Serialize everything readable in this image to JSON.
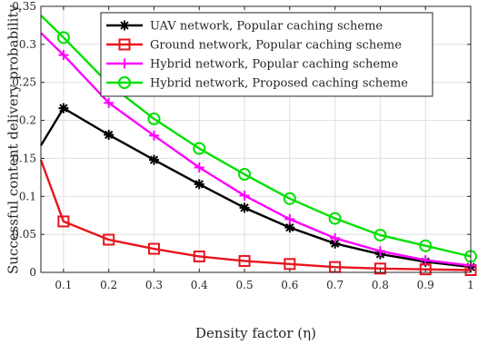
{
  "chart_data": {
    "type": "line",
    "title": "",
    "xlabel": "Density factor (η)",
    "ylabel": "Successful content delivery probability",
    "xlim": [
      0.05,
      1.0
    ],
    "ylim": [
      0,
      0.35
    ],
    "xticks": [
      0.1,
      0.2,
      0.3,
      0.4,
      0.5,
      0.6,
      0.7,
      0.8,
      0.9,
      1
    ],
    "xtick_labels": [
      "0.1",
      "0.2",
      "0.3",
      "0.4",
      "0.5",
      "0.6",
      "0.7",
      "0.8",
      "0.9",
      "1"
    ],
    "yticks": [
      0,
      0.05,
      0.1,
      0.15,
      0.2,
      0.25,
      0.3,
      0.35
    ],
    "ytick_labels": [
      "0",
      "0.05",
      "0.1",
      "0.15",
      "0.2",
      "0.25",
      "0.3",
      "0.35"
    ],
    "grid": true,
    "legend_position": "top-right",
    "x": [
      0.05,
      0.1,
      0.2,
      0.3,
      0.4,
      0.5,
      0.6,
      0.7,
      0.8,
      0.9,
      1.0
    ],
    "series": [
      {
        "name": "UAV network, Popular caching scheme",
        "color": "#000000",
        "marker": "asterisk",
        "values": [
          0.167,
          0.216,
          0.181,
          0.148,
          0.116,
          0.085,
          0.059,
          0.038,
          0.024,
          0.014,
          0.007
        ]
      },
      {
        "name": "Ground network, Popular caching scheme",
        "color": "#e8141c",
        "marker": "square",
        "values": [
          0.148,
          0.067,
          0.043,
          0.031,
          0.021,
          0.015,
          0.011,
          0.007,
          0.005,
          0.004,
          0.003
        ]
      },
      {
        "name": "Hybrid network, Popular caching scheme",
        "color": "#ff00ff",
        "marker": "plus",
        "values": [
          0.315,
          0.286,
          0.223,
          0.18,
          0.138,
          0.101,
          0.07,
          0.045,
          0.028,
          0.016,
          0.009
        ]
      },
      {
        "name": "Hybrid network, Proposed caching scheme",
        "color": "#00e000",
        "marker": "circle",
        "values": [
          0.338,
          0.309,
          0.248,
          0.202,
          0.163,
          0.129,
          0.097,
          0.071,
          0.049,
          0.035,
          0.021
        ]
      }
    ]
  }
}
